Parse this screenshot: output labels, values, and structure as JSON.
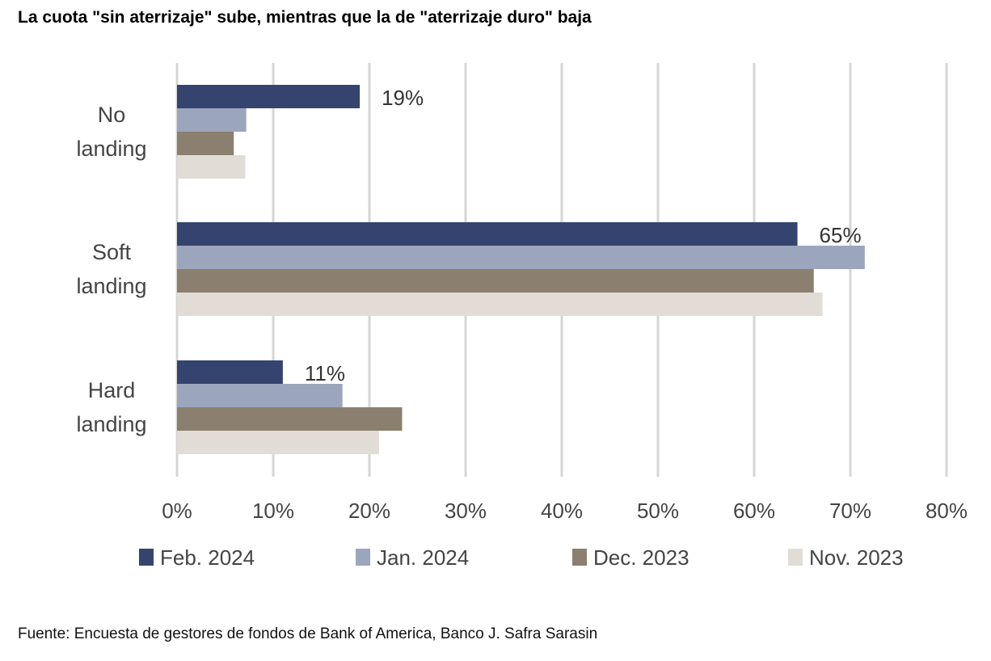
{
  "title": "La cuota \"sin aterrizaje\" sube, mientras que la de \"aterrizaje duro\" baja",
  "source": "Fuente: Encuesta de gestores de fondos de Bank of America, Banco J. Safra Sarasin",
  "chart_data": {
    "type": "bar",
    "orientation": "horizontal",
    "categories": [
      [
        "No",
        "landing"
      ],
      [
        "Soft",
        "landing"
      ],
      [
        "Hard",
        "landing"
      ]
    ],
    "series": [
      {
        "name": "Feb. 2024",
        "color": "#35436f",
        "values": [
          19,
          64.5,
          11
        ]
      },
      {
        "name": "Jan. 2024",
        "color": "#9ba6bc",
        "values": [
          7.2,
          71.5,
          17.2
        ]
      },
      {
        "name": "Dec. 2023",
        "color": "#8b7f6f",
        "values": [
          5.9,
          66.2,
          23.4
        ]
      },
      {
        "name": "Nov. 2023",
        "color": "#e1dcd6",
        "values": [
          7.1,
          67.1,
          21
        ]
      }
    ],
    "data_labels": [
      {
        "category": 0,
        "series": 0,
        "text": "19%"
      },
      {
        "category": 1,
        "series": 0,
        "text": "65%"
      },
      {
        "category": 2,
        "series": 0,
        "text": "11%"
      }
    ],
    "xlim": [
      0,
      80
    ],
    "xticks": [
      0,
      10,
      20,
      30,
      40,
      50,
      60,
      70,
      80
    ],
    "tick_suffix": "%",
    "grid": true,
    "legend_position": "bottom"
  }
}
